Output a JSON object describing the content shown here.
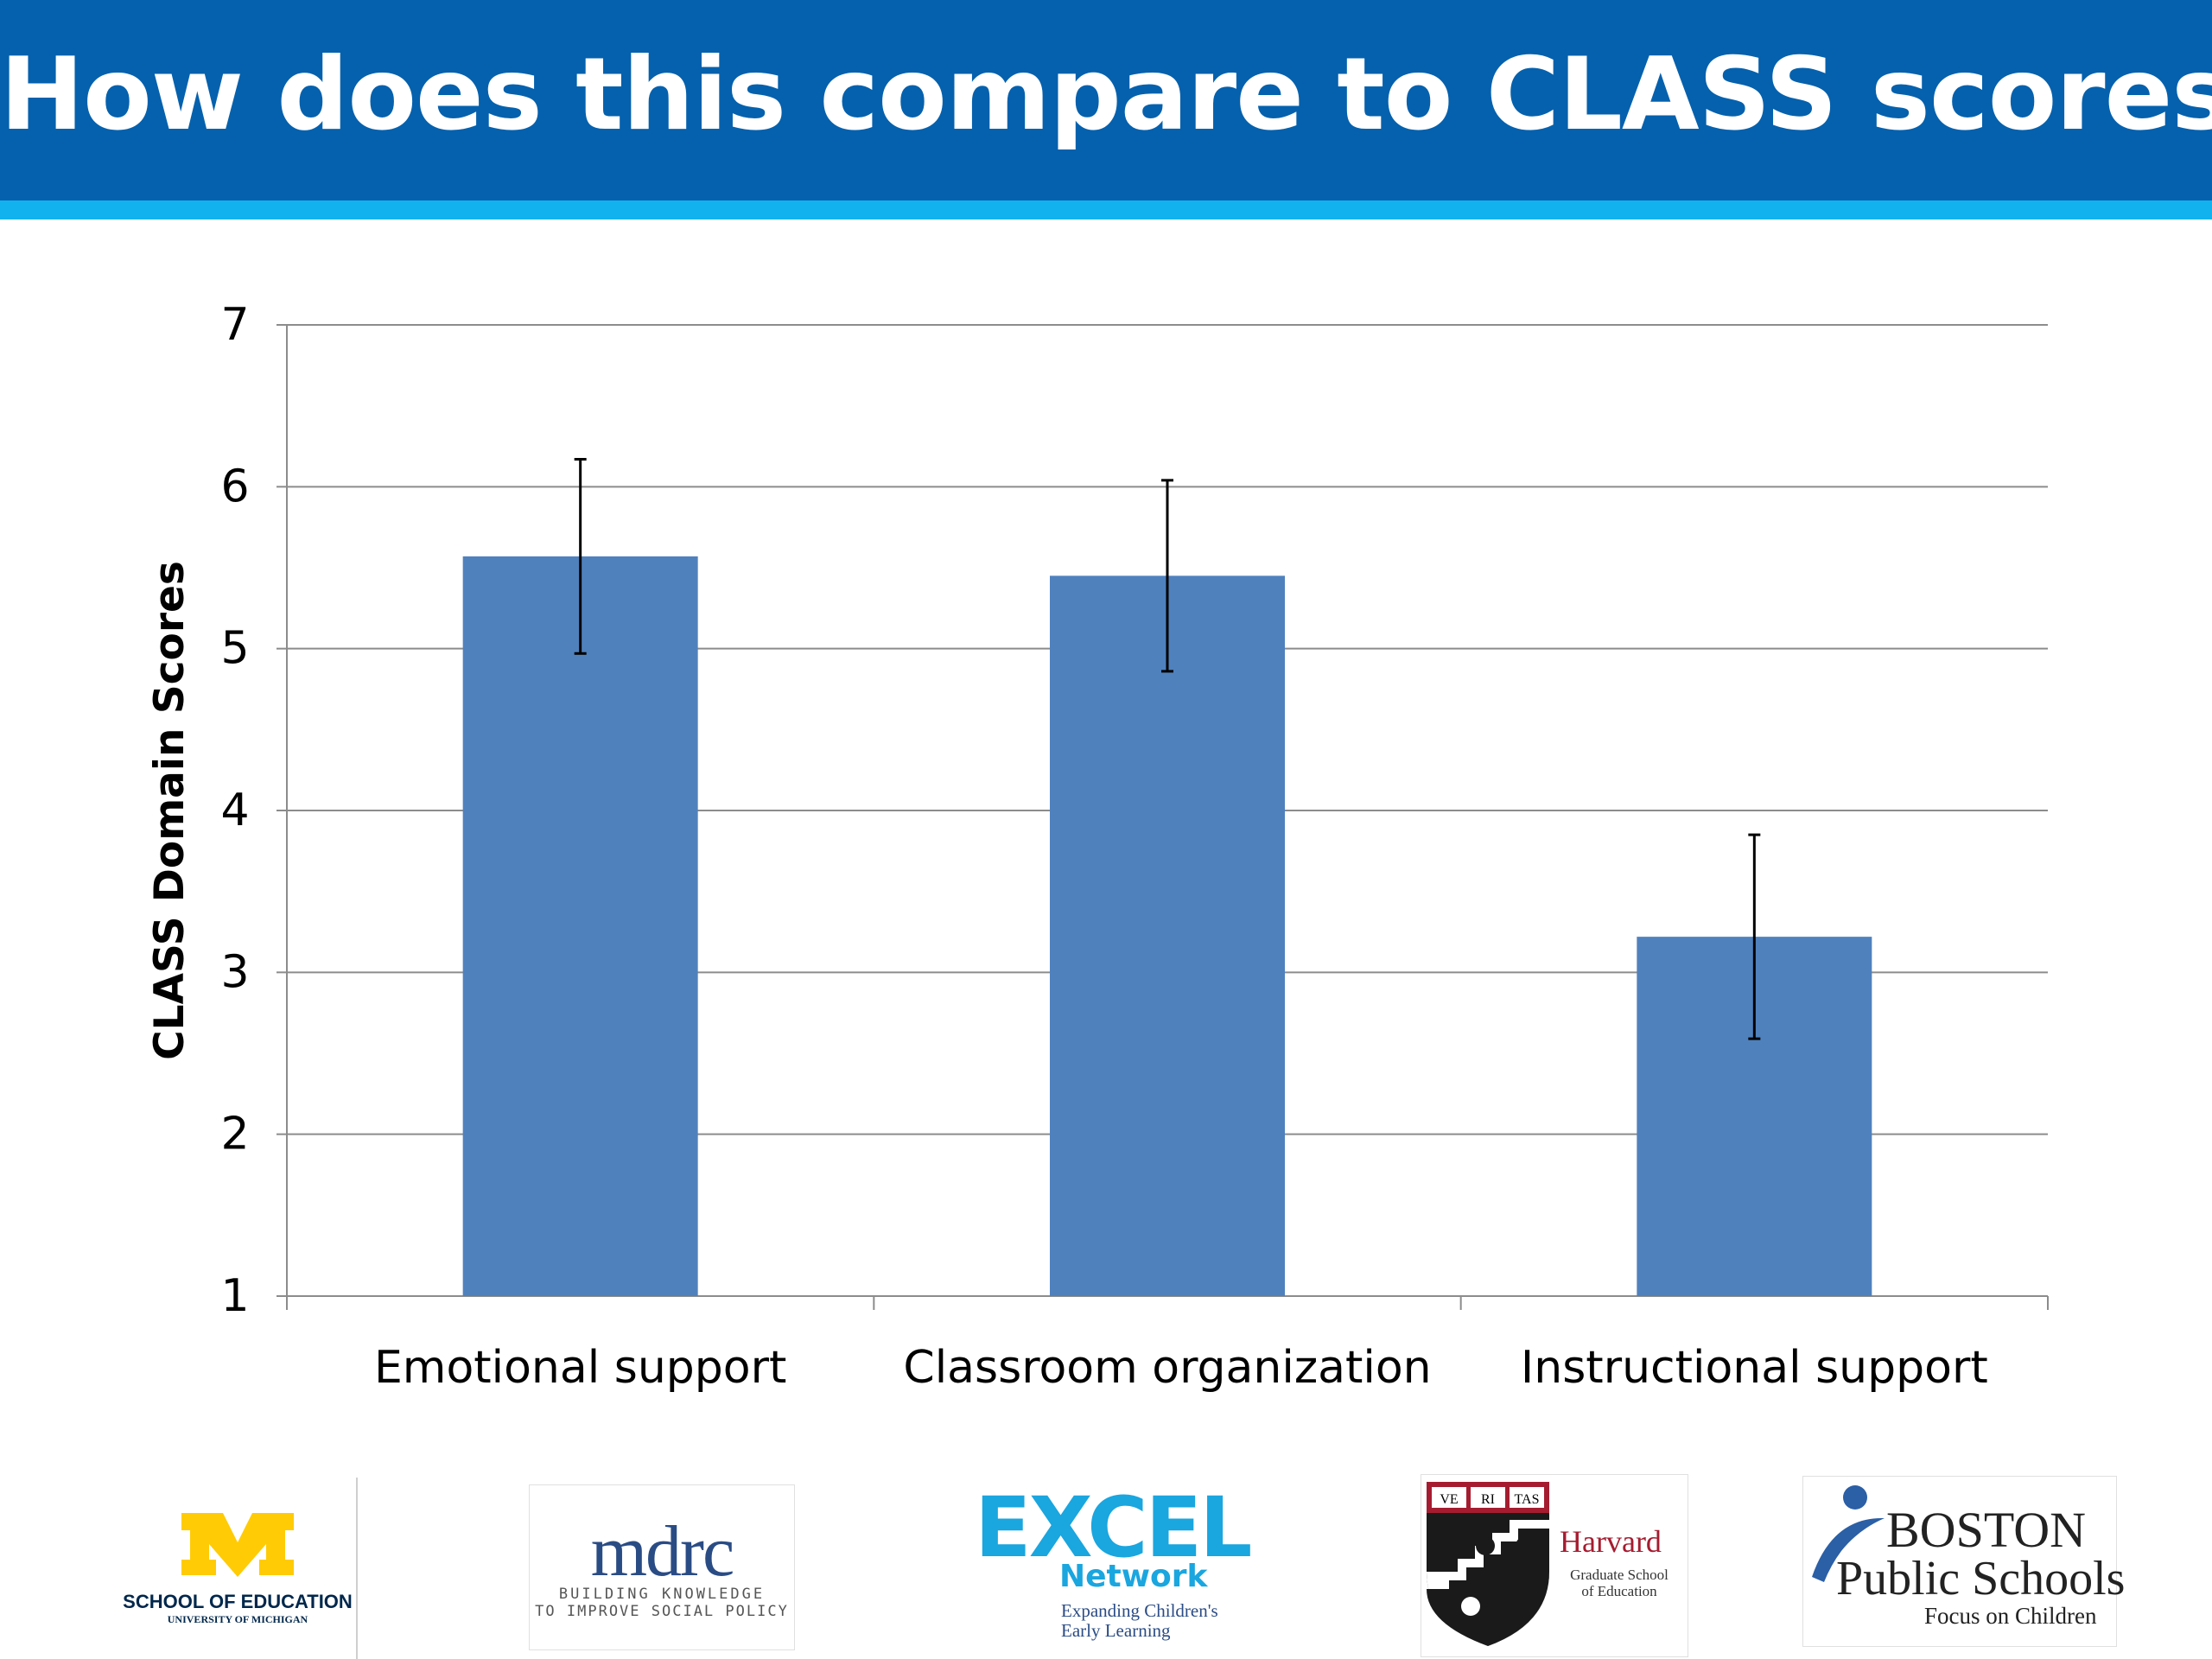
{
  "slide": {
    "title": "How does this compare to CLASS scores?",
    "header_color": "#0561ad",
    "stripe_color": "#12b2ef"
  },
  "chart_data": {
    "type": "bar",
    "categories": [
      "Emotional support",
      "Classroom organization",
      "Instructional support"
    ],
    "values": [
      5.57,
      5.45,
      3.22
    ],
    "error_low": [
      4.97,
      4.86,
      2.59
    ],
    "error_high": [
      6.17,
      6.04,
      3.85
    ],
    "ylabel": "CLASS Domain Scores",
    "xlabel": "",
    "ylim": [
      1,
      7
    ],
    "yticks": [
      1,
      2,
      3,
      4,
      5,
      6,
      7
    ],
    "grid": true,
    "bar_color": "#4f81bd"
  },
  "logos": {
    "michigan": {
      "letter": "M",
      "line1": "SCHOOL OF EDUCATION",
      "line2": "UNIVERSITY OF MICHIGAN",
      "gold": "#ffcb05",
      "blue": "#00274c"
    },
    "mdrc": {
      "name": "mdrc",
      "line1": "BUILDING KNOWLEDGE",
      "line2": "TO IMPROVE SOCIAL POLICY"
    },
    "excel": {
      "name": "EXCEL",
      "sub": "Network",
      "line1": "Expanding Children's",
      "line2": "Early Learning",
      "color": "#1aa6df"
    },
    "harvard": {
      "name": "Harvard",
      "line1": "Graduate School",
      "line2": "of Education",
      "shield_text": [
        "VE",
        "RI",
        "TAS"
      ],
      "crimson": "#a51c30"
    },
    "boston": {
      "line1": "BOSTON",
      "line2": "Public Schools",
      "line3": "Focus on Children"
    }
  }
}
